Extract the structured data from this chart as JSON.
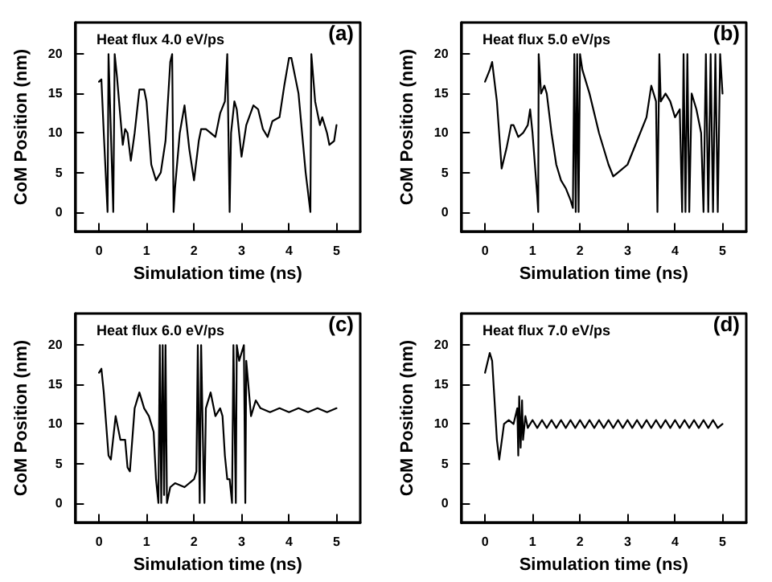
{
  "chart_data": [
    {
      "type": "line",
      "xlabel": "Simulation time (ns)",
      "ylabel": "CoM Position (nm)",
      "annotations": [
        "Heat flux 4.0 eV/ps",
        "(a)"
      ],
      "xlim": [
        -0.5,
        5.5
      ],
      "ylim": [
        -2.5,
        24
      ],
      "xticks": [
        0,
        1,
        2,
        3,
        4,
        5
      ],
      "yticks": [
        0,
        5,
        10,
        15,
        20
      ],
      "series": [
        {
          "color": "#000000",
          "x": [
            0.0,
            0.05,
            0.1,
            0.18,
            0.2,
            0.25,
            0.3,
            0.33,
            0.38,
            0.45,
            0.5,
            0.55,
            0.6,
            0.67,
            0.75,
            0.85,
            0.95,
            1.0,
            1.1,
            1.2,
            1.3,
            1.4,
            1.5,
            1.54,
            1.57,
            1.6,
            1.7,
            1.8,
            1.9,
            2.0,
            2.1,
            2.15,
            2.25,
            2.35,
            2.45,
            2.55,
            2.65,
            2.7,
            2.75,
            2.78,
            2.85,
            2.9,
            3.0,
            3.1,
            3.25,
            3.35,
            3.45,
            3.55,
            3.65,
            3.8,
            3.9,
            4.0,
            4.05,
            4.2,
            4.35,
            4.45,
            4.47,
            4.55,
            4.65,
            4.7,
            4.8,
            4.85,
            4.95,
            5.0
          ],
          "values": [
            16.5,
            16.8,
            10,
            0,
            20,
            10,
            0,
            20,
            17,
            12,
            8.5,
            10.5,
            10,
            6.5,
            10,
            15.5,
            15.5,
            14,
            6,
            4,
            5,
            9,
            19,
            20,
            0,
            3,
            10,
            13.5,
            8,
            4,
            9,
            10.5,
            10.5,
            10,
            9.5,
            12.5,
            14,
            20,
            0,
            10,
            14,
            13,
            7,
            11,
            13.5,
            13,
            10.5,
            9.5,
            11.5,
            12,
            16,
            19.5,
            19.5,
            15,
            5,
            0,
            20,
            14,
            11,
            12,
            10,
            8.5,
            9,
            11
          ]
        }
      ]
    },
    {
      "type": "line",
      "xlabel": "Simulation time (ns)",
      "ylabel": "CoM Position (nm)",
      "annotations": [
        "Heat flux 5.0 eV/ps",
        "(b)"
      ],
      "xlim": [
        -0.5,
        5.5
      ],
      "ylim": [
        -2.5,
        24
      ],
      "xticks": [
        0,
        1,
        2,
        3,
        4,
        5
      ],
      "yticks": [
        0,
        5,
        10,
        15,
        20
      ],
      "series": [
        {
          "color": "#000000",
          "x": [
            0.0,
            0.1,
            0.15,
            0.25,
            0.35,
            0.45,
            0.55,
            0.6,
            0.7,
            0.8,
            0.9,
            0.95,
            1.0,
            1.05,
            1.1,
            1.12,
            1.13,
            1.18,
            1.25,
            1.3,
            1.4,
            1.5,
            1.6,
            1.7,
            1.8,
            1.85,
            1.88,
            1.91,
            1.94,
            1.97,
            2.0,
            2.05,
            2.2,
            2.4,
            2.6,
            2.7,
            2.8,
            3.0,
            3.2,
            3.4,
            3.5,
            3.6,
            3.63,
            3.67,
            3.7,
            3.8,
            3.9,
            4.0,
            4.1,
            4.15,
            4.18,
            4.22,
            4.26,
            4.3,
            4.35,
            4.45,
            4.55,
            4.6,
            4.65,
            4.7,
            4.75,
            4.8,
            4.85,
            4.9,
            4.95,
            5.0
          ],
          "values": [
            16.5,
            18,
            19,
            14,
            5.5,
            8,
            11,
            11,
            9.5,
            10,
            11,
            13,
            10,
            6,
            2,
            0,
            20,
            15,
            16,
            15,
            10,
            6,
            4,
            3,
            1.5,
            0.5,
            20,
            0,
            20,
            0,
            20,
            18,
            15,
            10,
            6,
            4.5,
            5,
            6,
            9,
            12,
            16,
            14,
            0,
            20,
            14,
            15,
            14,
            12,
            13,
            0,
            20,
            0,
            20,
            0,
            15,
            13,
            10,
            0,
            20,
            0,
            20,
            0,
            20,
            0,
            20,
            15
          ]
        }
      ]
    },
    {
      "type": "line",
      "xlabel": "Simulation time (ns)",
      "ylabel": "CoM Position (nm)",
      "annotations": [
        "Heat flux 6.0 eV/ps",
        "(c)"
      ],
      "xlim": [
        -0.5,
        5.5
      ],
      "ylim": [
        -2.5,
        24
      ],
      "xticks": [
        0,
        1,
        2,
        3,
        4,
        5
      ],
      "yticks": [
        0,
        5,
        10,
        15,
        20
      ],
      "series": [
        {
          "color": "#000000",
          "x": [
            0.0,
            0.05,
            0.1,
            0.2,
            0.25,
            0.35,
            0.45,
            0.55,
            0.6,
            0.65,
            0.75,
            0.85,
            0.95,
            1.05,
            1.15,
            1.2,
            1.25,
            1.28,
            1.31,
            1.34,
            1.37,
            1.4,
            1.43,
            1.5,
            1.6,
            1.8,
            2.0,
            2.05,
            2.08,
            2.12,
            2.15,
            2.2,
            2.22,
            2.25,
            2.35,
            2.45,
            2.55,
            2.6,
            2.65,
            2.7,
            2.75,
            2.8,
            2.83,
            2.88,
            2.9,
            2.95,
            3.05,
            3.08,
            3.1,
            3.2,
            3.3,
            3.4,
            3.6,
            3.8,
            4.0,
            4.2,
            4.4,
            4.6,
            4.8,
            5.0
          ],
          "values": [
            16.5,
            17,
            14,
            6,
            5.5,
            11,
            8,
            8,
            4.5,
            4,
            12,
            14,
            12,
            11,
            9,
            3,
            0,
            20,
            0,
            20,
            1,
            20,
            0,
            2,
            2.5,
            2,
            3,
            4,
            20,
            0,
            20,
            4,
            0,
            12,
            14,
            11,
            12,
            11,
            6,
            3,
            3,
            0,
            20,
            0,
            20,
            18,
            20,
            0,
            18,
            11,
            13,
            12,
            11.5,
            12,
            11.5,
            12,
            11.5,
            12,
            11.5,
            12
          ]
        }
      ]
    },
    {
      "type": "line",
      "xlabel": "Simulation time (ns)",
      "ylabel": "CoM Position (nm)",
      "annotations": [
        "Heat flux 7.0 eV/ps",
        "(d)"
      ],
      "xlim": [
        -0.5,
        5.5
      ],
      "ylim": [
        -2.5,
        24
      ],
      "xticks": [
        0,
        1,
        2,
        3,
        4,
        5
      ],
      "yticks": [
        0,
        5,
        10,
        15,
        20
      ],
      "series": [
        {
          "color": "#000000",
          "x": [
            0.0,
            0.1,
            0.15,
            0.25,
            0.3,
            0.4,
            0.5,
            0.6,
            0.68,
            0.7,
            0.72,
            0.75,
            0.78,
            0.8,
            0.85,
            0.9,
            1.0,
            1.1,
            1.2,
            1.3,
            1.4,
            1.5,
            1.6,
            1.7,
            1.8,
            1.9,
            2.0,
            2.1,
            2.2,
            2.3,
            2.4,
            2.5,
            2.6,
            2.7,
            2.8,
            2.9,
            3.0,
            3.1,
            3.2,
            3.3,
            3.4,
            3.5,
            3.6,
            3.7,
            3.8,
            3.9,
            4.0,
            4.1,
            4.2,
            4.3,
            4.4,
            4.5,
            4.6,
            4.7,
            4.8,
            4.9,
            5.0
          ],
          "values": [
            16.5,
            19,
            18,
            8,
            5.5,
            10,
            10.5,
            10,
            12,
            6,
            13.5,
            7,
            13,
            8,
            11,
            9.5,
            10.5,
            9.5,
            10.5,
            9.5,
            10.5,
            9.5,
            10.5,
            9.5,
            10.5,
            9.5,
            10.5,
            9.5,
            10.5,
            9.5,
            10.5,
            9.5,
            10.5,
            9.5,
            10.5,
            9.5,
            10.5,
            9.5,
            10.5,
            9.5,
            10.5,
            9.5,
            10.5,
            9.5,
            10.5,
            9.5,
            10.5,
            9.5,
            10.5,
            9.5,
            10.5,
            9.5,
            10.5,
            9.5,
            10.5,
            9.5,
            10
          ]
        }
      ]
    }
  ]
}
